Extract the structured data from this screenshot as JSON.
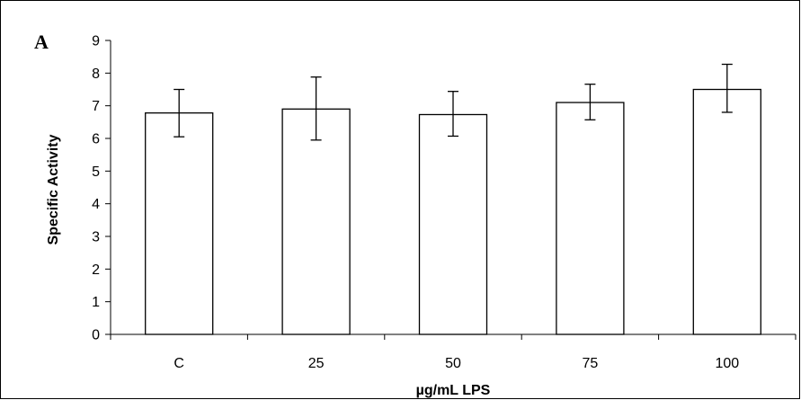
{
  "chart_data": {
    "type": "bar",
    "panel_label": "A",
    "title": "",
    "xlabel": "µg/mL LPS",
    "ylabel": "Specific Activity",
    "categories": [
      "C",
      "25",
      "50",
      "75",
      "100"
    ],
    "values": [
      6.78,
      6.9,
      6.73,
      7.1,
      7.5
    ],
    "error_low": [
      6.05,
      5.95,
      6.07,
      6.57,
      6.8
    ],
    "error_high": [
      7.5,
      7.88,
      7.44,
      7.66,
      8.27
    ],
    "ylim": [
      0,
      9
    ],
    "yticks": [
      0,
      1,
      2,
      3,
      4,
      5,
      6,
      7,
      8,
      9
    ],
    "grid": false,
    "legend": "none",
    "bar_fill": "#ffffff",
    "bar_stroke": "#000000"
  }
}
